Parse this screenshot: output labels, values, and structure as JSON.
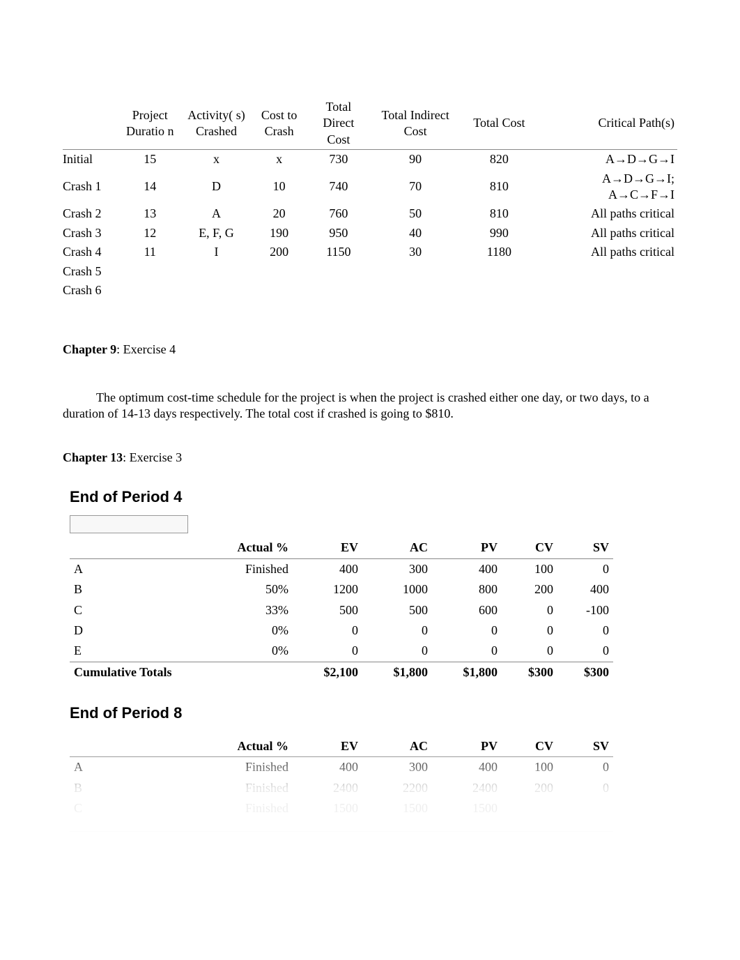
{
  "table1": {
    "headers": {
      "stage": "",
      "duration": "Project Duratio n",
      "activity": "Activity( s) Crashed",
      "cost_crash": "Cost to Crash",
      "direct": "Total Direct Cost",
      "indirect": "Total Indirect Cost",
      "total": "Total Cost",
      "critical": "Critical Path(s)"
    },
    "col_widths": [
      "80px",
      "90px",
      "100px",
      "80px",
      "90px",
      "130px",
      "110px",
      "200px"
    ],
    "rows": [
      {
        "stage": "Initial",
        "duration": "15",
        "activity": "x",
        "cost_crash": "x",
        "direct": "730",
        "indirect": "90",
        "total": "820",
        "critical": "A→D→G→I"
      },
      {
        "stage": "Crash 1",
        "duration": "14",
        "activity": "D",
        "cost_crash": "10",
        "direct": "740",
        "indirect": "70",
        "total": "810",
        "critical": "A→D→G→I; A→C→F→I"
      },
      {
        "stage": "Crash 2",
        "duration": "13",
        "activity": "A",
        "cost_crash": "20",
        "direct": "760",
        "indirect": "50",
        "total": "810",
        "critical": "All paths critical"
      },
      {
        "stage": "Crash 3",
        "duration": "12",
        "activity": "E, F, G",
        "cost_crash": "190",
        "direct": "950",
        "indirect": "40",
        "total": "990",
        "critical": "All paths critical"
      },
      {
        "stage": "Crash 4",
        "duration": "11",
        "activity": "I",
        "cost_crash": "200",
        "direct": "1150",
        "indirect": "30",
        "total": "1180",
        "critical": "All paths critical"
      },
      {
        "stage": "Crash 5",
        "duration": "",
        "activity": "",
        "cost_crash": "",
        "direct": "",
        "indirect": "",
        "total": "",
        "critical": ""
      },
      {
        "stage": "Crash 6",
        "duration": "",
        "activity": "",
        "cost_crash": "",
        "direct": "",
        "indirect": "",
        "total": "",
        "critical": ""
      }
    ]
  },
  "chapter9": {
    "label": "Chapter 9",
    "rest": ": Exercise 4"
  },
  "paragraph": "The optimum cost-time schedule for the project is when the project is crashed either one day, or two days, to a duration of 14-13 days respectively. The total cost if crashed is going to $810.",
  "chapter13": {
    "label": "Chapter 13",
    "rest": ": Exercise 3"
  },
  "period4": {
    "title": "End of Period 4",
    "headers": {
      "task": "",
      "actual": "Actual %",
      "ev": "EV",
      "ac": "AC",
      "pv": "PV",
      "cv": "CV",
      "sv": "SV"
    },
    "col_widths": [
      "200px",
      "120px",
      "100px",
      "100px",
      "100px",
      "80px",
      "80px"
    ],
    "rows": [
      {
        "task": "A",
        "actual": "Finished",
        "ev": "400",
        "ac": "300",
        "pv": "400",
        "cv": "100",
        "sv": "0"
      },
      {
        "task": "B",
        "actual": "50%",
        "ev": "1200",
        "ac": "1000",
        "pv": "800",
        "cv": "200",
        "sv": "400"
      },
      {
        "task": "C",
        "actual": "33%",
        "ev": "500",
        "ac": "500",
        "pv": "600",
        "cv": "0",
        "sv": "-100"
      },
      {
        "task": "D",
        "actual": "0%",
        "ev": "0",
        "ac": "0",
        "pv": "0",
        "cv": "0",
        "sv": "0"
      },
      {
        "task": "E",
        "actual": "0%",
        "ev": "0",
        "ac": "0",
        "pv": "0",
        "cv": "0",
        "sv": "0"
      }
    ],
    "totals": {
      "label": "Cumulative Totals",
      "ev": "$2,100",
      "ac": "$1,800",
      "pv": "$1,800",
      "cv": "$300",
      "sv": "$300"
    }
  },
  "period8": {
    "title": "End of Period 8",
    "headers": {
      "task": "",
      "actual": "Actual %",
      "ev": "EV",
      "ac": "AC",
      "pv": "PV",
      "cv": "CV",
      "sv": "SV"
    },
    "rows": [
      {
        "task": "A",
        "actual": "Finished",
        "ev": "400",
        "ac": "300",
        "pv": "400",
        "cv": "100",
        "sv": "0"
      },
      {
        "task": "B",
        "actual": "Finished",
        "ev": "2400",
        "ac": "2200",
        "pv": "2400",
        "cv": "200",
        "sv": "0"
      },
      {
        "task": "C",
        "actual": "Finished",
        "ev": "1500",
        "ac": "1500",
        "pv": "1500",
        "cv": "",
        "sv": ""
      },
      {
        "task": "",
        "actual": "",
        "ev": "",
        "ac": "",
        "pv": "",
        "cv": "",
        "sv": ""
      },
      {
        "task": "",
        "actual": "",
        "ev": "",
        "ac": "",
        "pv": "",
        "cv": "",
        "sv": ""
      },
      {
        "task": "",
        "actual": "",
        "ev": "",
        "ac": "",
        "pv": "",
        "cv": "",
        "sv": ""
      }
    ],
    "totals": {
      "label": "",
      "ev": "",
      "ac": "",
      "pv": "",
      "cv": "",
      "sv": ""
    }
  }
}
